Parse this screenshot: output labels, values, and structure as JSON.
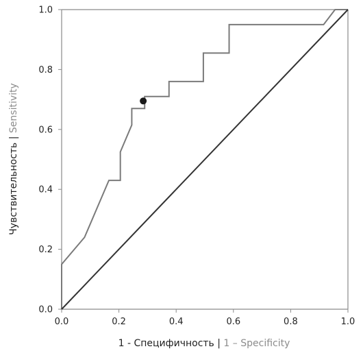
{
  "chart_data": {
    "type": "line",
    "xlabel": "1 - Специфичность | 1 – Specificity",
    "xlabel_parts": {
      "main": "1 - Специфичность | ",
      "alt": "1 – Specificity"
    },
    "ylabel": "Чувствительность | Sensitivity",
    "ylabel_parts": {
      "main": "Чувствительность | ",
      "alt": "Sensitivity"
    },
    "xlim": [
      0,
      1
    ],
    "ylim": [
      0,
      1
    ],
    "xticks": [
      "0.0",
      "0.2",
      "0.4",
      "0.6",
      "0.8",
      "1.0"
    ],
    "yticks": [
      "0.0",
      "0.2",
      "0.4",
      "0.6",
      "0.8",
      "1.0"
    ],
    "grid": false,
    "series": [
      {
        "type": "roc-curve",
        "color": "#7a7a7a",
        "points": [
          [
            0.0,
            0.0
          ],
          [
            0.0,
            0.15
          ],
          [
            0.08,
            0.24
          ],
          [
            0.165,
            0.43
          ],
          [
            0.205,
            0.43
          ],
          [
            0.205,
            0.525
          ],
          [
            0.245,
            0.615
          ],
          [
            0.245,
            0.67
          ],
          [
            0.29,
            0.67
          ],
          [
            0.29,
            0.71
          ],
          [
            0.375,
            0.71
          ],
          [
            0.375,
            0.76
          ],
          [
            0.495,
            0.76
          ],
          [
            0.495,
            0.855
          ],
          [
            0.585,
            0.855
          ],
          [
            0.585,
            0.95
          ],
          [
            0.915,
            0.95
          ],
          [
            0.955,
            1.0
          ],
          [
            1.0,
            1.0
          ]
        ]
      },
      {
        "type": "reference-diagonal",
        "color": "#333333",
        "points": [
          [
            0,
            0
          ],
          [
            1,
            1
          ]
        ]
      }
    ],
    "cutoff_point": {
      "x": 0.285,
      "y": 0.695,
      "color": "#1a1a1a"
    }
  }
}
